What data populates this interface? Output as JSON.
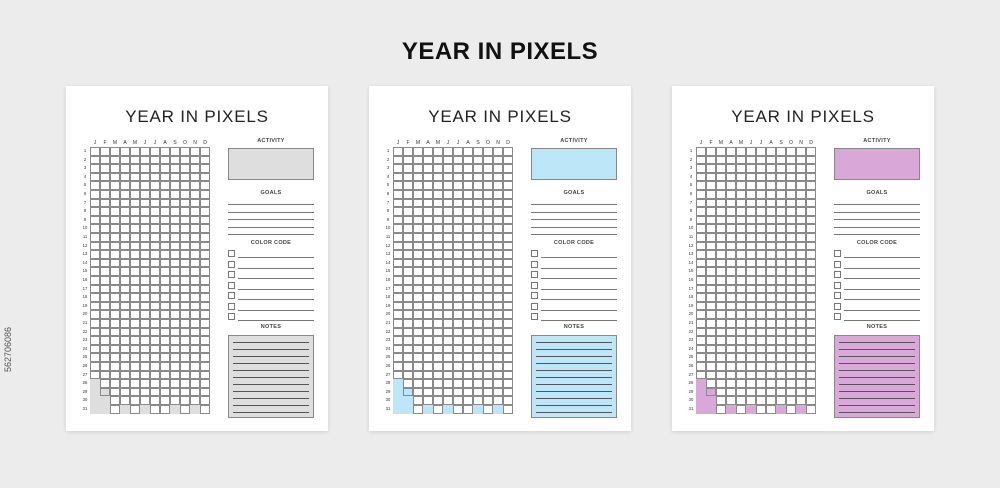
{
  "main_title": "YEAR IN PIXELS",
  "watermark_id": "562706086",
  "planner": {
    "title": "YEAR IN PIXELS",
    "months": [
      "J",
      "F",
      "M",
      "A",
      "M",
      "J",
      "J",
      "A",
      "S",
      "O",
      "N",
      "D"
    ],
    "days": [
      "1",
      "2",
      "3",
      "4",
      "5",
      "6",
      "7",
      "8",
      "9",
      "10",
      "11",
      "12",
      "13",
      "14",
      "15",
      "16",
      "17",
      "18",
      "19",
      "20",
      "21",
      "22",
      "23",
      "24",
      "25",
      "26",
      "27",
      "28",
      "29",
      "30",
      "31"
    ],
    "sections": {
      "activity": "ACTIVITY",
      "goals": "GOALS",
      "color_code": "COLOR CODE",
      "notes": "NOTES"
    }
  },
  "variants": [
    {
      "name": "gray",
      "accent": "#dedede"
    },
    {
      "name": "blue",
      "accent": "#bde6f8"
    },
    {
      "name": "purple",
      "accent": "#d9a8d8"
    }
  ]
}
